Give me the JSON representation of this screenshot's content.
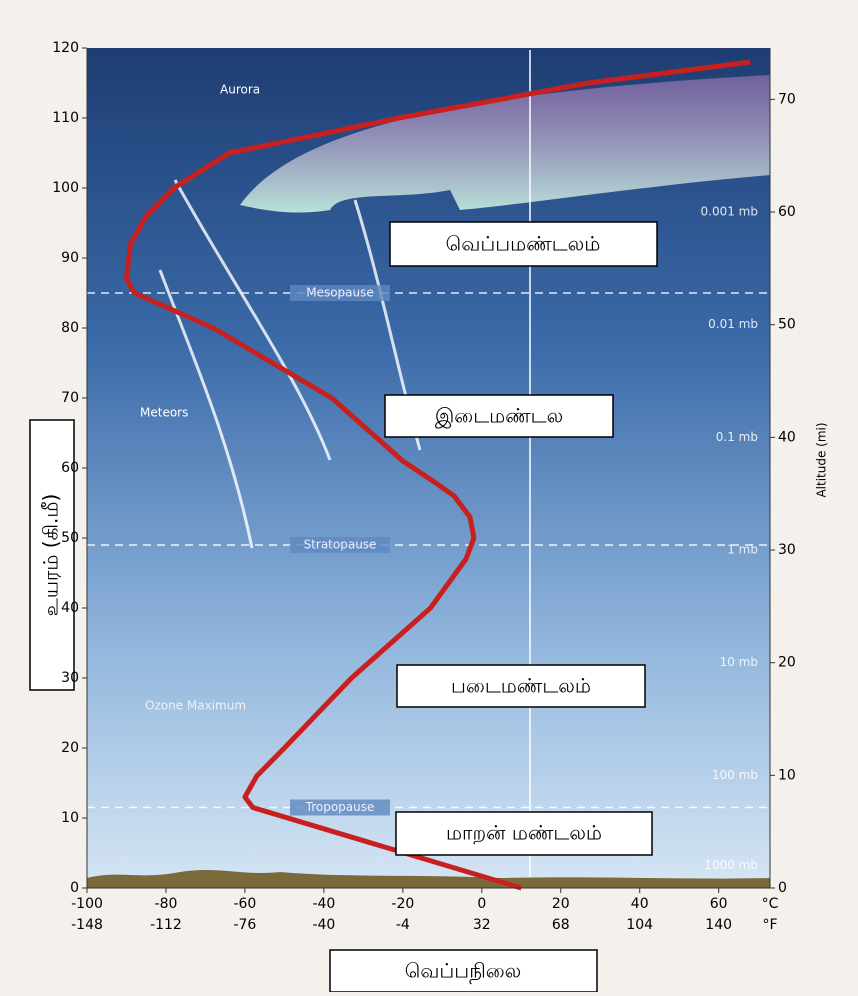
{
  "chart_data": {
    "type": "line",
    "x": [
      10,
      -58,
      -60,
      -57,
      -50,
      -33,
      -13,
      -4,
      -2,
      -3,
      -7,
      -12,
      -20,
      -38,
      -68,
      -88,
      -90,
      -89,
      -85,
      -78,
      -64,
      -21,
      27,
      68
    ],
    "values": [
      0,
      11.5,
      13,
      16,
      20,
      30,
      40,
      47,
      50,
      53,
      56,
      58,
      61,
      70,
      80,
      85,
      87,
      92,
      96,
      100,
      105,
      110,
      115,
      118
    ],
    "color": "#c8201e",
    "xlim": [
      -100,
      73
    ],
    "xticks": [
      -100,
      -80,
      -60,
      -40,
      -20,
      0,
      20,
      40,
      60
    ],
    "fahrenheit_ticks": [
      -148,
      -112,
      -76,
      -40,
      -4,
      32,
      68,
      104,
      140
    ],
    "x_unit": "°C",
    "x2_unit": "°F",
    "ylim": [
      0,
      120
    ],
    "yticks": [
      0,
      10,
      20,
      30,
      40,
      50,
      60,
      70,
      80,
      90,
      100,
      110,
      120
    ],
    "y2lim": [
      0,
      74.56
    ],
    "y2ticks": [
      0,
      10,
      20,
      30,
      40,
      50,
      60,
      70
    ],
    "y2_label": "Altitude (mi)",
    "boundaries": [
      {
        "name": "Mesopause",
        "altitude": 85
      },
      {
        "name": "Stratopause",
        "altitude": 49
      },
      {
        "name": "Tropopause",
        "altitude": 11.5
      }
    ],
    "pressure_labels": [
      {
        "label": "0.001 mb",
        "mi": 60
      },
      {
        "label": "0.01 mb",
        "mi": 50
      },
      {
        "label": "0.1 mb",
        "mi": 40
      },
      {
        "label": "1 mb",
        "mi": 30
      },
      {
        "label": "10 mb",
        "mi": 20
      },
      {
        "label": "100 mb",
        "mi": 10
      },
      {
        "label": "1000 mb",
        "mi": 2
      }
    ],
    "annotations": {
      "aurora": "Aurora",
      "meteors": "Meteors",
      "ozone": "Ozone Maximum"
    },
    "layer_labels": [
      "வெப்பமண்டலம்",
      "இடைமண்டல",
      "படைமண்டலம்",
      "மாறன் மண்டலம்"
    ],
    "y_label": "உயரம் (கி.மீ)",
    "x_label": "வெப்பநிலை"
  }
}
